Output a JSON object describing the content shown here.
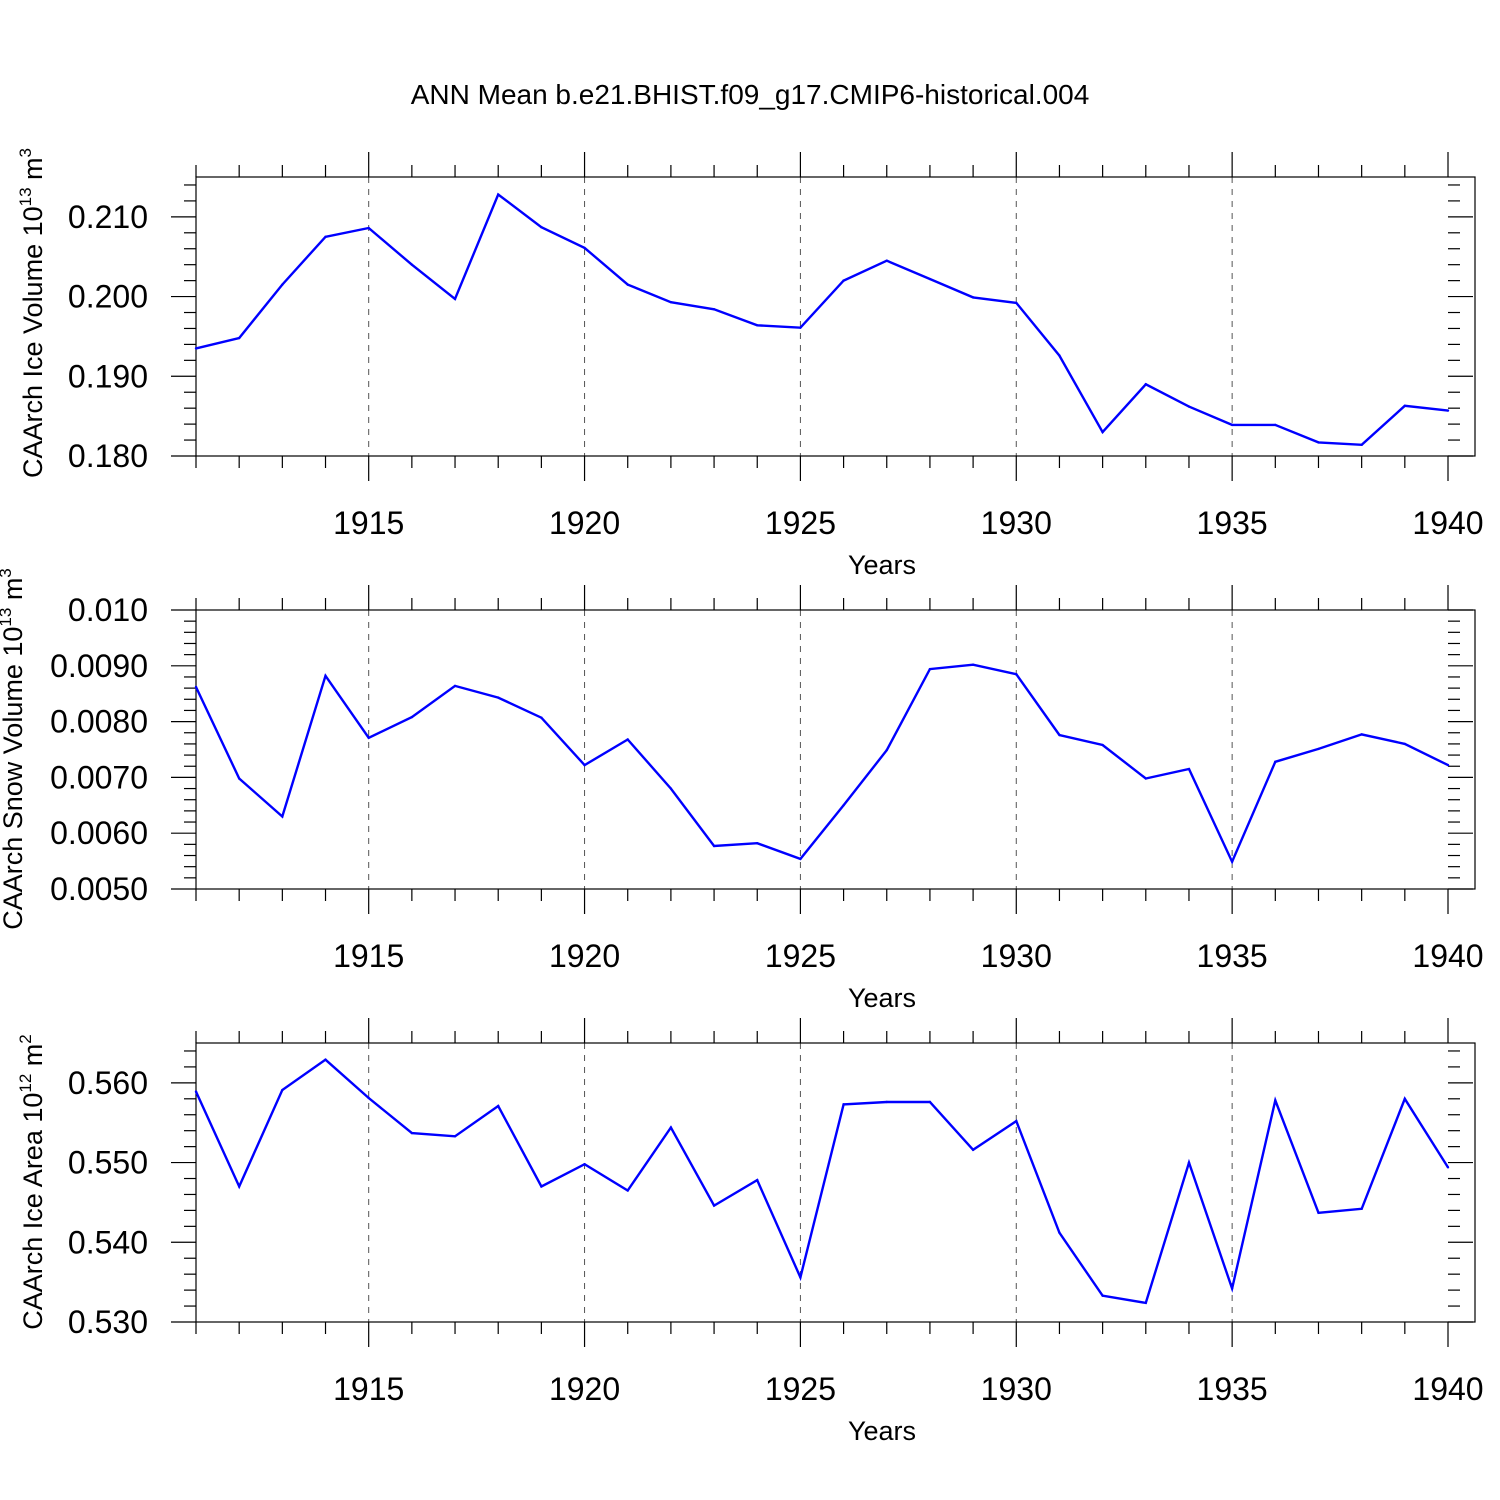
{
  "figure": {
    "title": "ANN Mean b.e21.BHIST.f09_g17.CMIP6-historical.004"
  },
  "chart_data": [
    {
      "type": "line",
      "title": "ANN Mean b.e21.BHIST.f09_g17.CMIP6-historical.004",
      "xlabel": "Years",
      "ylabel_main": "CAArch Ice Volume 10",
      "ylabel_exp": "13",
      "ylabel_unit": " m",
      "ylabel_unit_exp": "3",
      "xlim": [
        1911,
        1940
      ],
      "ylim": [
        0.18,
        0.215
      ],
      "xticks": [
        "1915",
        "1920",
        "1925",
        "1930",
        "1935",
        "1940"
      ],
      "yticks": [
        "0.180",
        "0.190",
        "0.200",
        "0.210"
      ],
      "x": [
        1911,
        1912,
        1913,
        1914,
        1915,
        1916,
        1917,
        1918,
        1919,
        1920,
        1921,
        1922,
        1923,
        1924,
        1925,
        1926,
        1927,
        1928,
        1929,
        1930,
        1931,
        1932,
        1933,
        1934,
        1935,
        1936,
        1937,
        1938,
        1939,
        1940
      ],
      "values": [
        0.1935,
        0.1948,
        0.2015,
        0.2075,
        0.2086,
        0.204,
        0.1997,
        0.2128,
        0.2087,
        0.2061,
        0.2015,
        0.1993,
        0.1984,
        0.1964,
        0.1961,
        0.202,
        0.2045,
        0.2022,
        0.1999,
        0.1992,
        0.1926,
        0.183,
        0.189,
        0.1862,
        0.1839,
        0.1839,
        0.1817,
        0.1814,
        0.1863,
        0.1857
      ],
      "line_color": "#0000ff"
    },
    {
      "type": "line",
      "xlabel": "Years",
      "ylabel_main": "CAArch Snow Volume 10",
      "ylabel_exp": "13",
      "ylabel_unit": " m",
      "ylabel_unit_exp": "3",
      "xlim": [
        1911,
        1940
      ],
      "ylim": [
        0.005,
        0.01
      ],
      "xticks": [
        "1915",
        "1920",
        "1925",
        "1930",
        "1935",
        "1940"
      ],
      "yticks": [
        "0.0050",
        "0.0060",
        "0.0070",
        "0.0080",
        "0.0090",
        "0.010"
      ],
      "x": [
        1911,
        1912,
        1913,
        1914,
        1915,
        1916,
        1917,
        1918,
        1919,
        1920,
        1921,
        1922,
        1923,
        1924,
        1925,
        1926,
        1927,
        1928,
        1929,
        1930,
        1931,
        1932,
        1933,
        1934,
        1935,
        1936,
        1937,
        1938,
        1939,
        1940
      ],
      "values": [
        0.00862,
        0.00698,
        0.0063,
        0.00882,
        0.00771,
        0.00808,
        0.00864,
        0.00843,
        0.00807,
        0.00722,
        0.00768,
        0.0068,
        0.00577,
        0.00582,
        0.00554,
        0.0065,
        0.00749,
        0.00894,
        0.00902,
        0.00885,
        0.00776,
        0.00758,
        0.00698,
        0.00715,
        0.00549,
        0.00728,
        0.00751,
        0.00777,
        0.0076,
        0.00722
      ],
      "line_color": "#0000ff"
    },
    {
      "type": "line",
      "xlabel": "Years",
      "ylabel_main": "CAArch Ice Area 10",
      "ylabel_exp": "12",
      "ylabel_unit": " m",
      "ylabel_unit_exp": "2",
      "xlim": [
        1911,
        1940
      ],
      "ylim": [
        0.53,
        0.565
      ],
      "xticks": [
        "1915",
        "1920",
        "1925",
        "1930",
        "1935",
        "1940"
      ],
      "yticks": [
        "0.530",
        "0.540",
        "0.550",
        "0.560"
      ],
      "x": [
        1911,
        1912,
        1913,
        1914,
        1915,
        1916,
        1917,
        1918,
        1919,
        1920,
        1921,
        1922,
        1923,
        1924,
        1925,
        1926,
        1927,
        1928,
        1929,
        1930,
        1931,
        1932,
        1933,
        1934,
        1935,
        1936,
        1937,
        1938,
        1939,
        1940
      ],
      "values": [
        0.5589,
        0.547,
        0.5591,
        0.5629,
        0.5581,
        0.5537,
        0.5533,
        0.5571,
        0.547,
        0.5498,
        0.5465,
        0.5544,
        0.5446,
        0.5478,
        0.5356,
        0.5573,
        0.5576,
        0.5576,
        0.5516,
        0.5552,
        0.5412,
        0.5333,
        0.5324,
        0.55,
        0.5342,
        0.5578,
        0.5437,
        0.5442,
        0.558,
        0.5494
      ],
      "line_color": "#0000ff"
    }
  ]
}
